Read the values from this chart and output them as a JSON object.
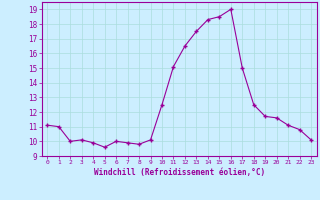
{
  "x": [
    0,
    1,
    2,
    3,
    4,
    5,
    6,
    7,
    8,
    9,
    10,
    11,
    12,
    13,
    14,
    15,
    16,
    17,
    18,
    19,
    20,
    21,
    22,
    23
  ],
  "y": [
    11.1,
    11.0,
    10.0,
    10.1,
    9.9,
    9.6,
    10.0,
    9.9,
    9.8,
    10.1,
    12.5,
    15.1,
    16.5,
    17.5,
    18.3,
    18.5,
    19.0,
    15.0,
    12.5,
    11.7,
    11.6,
    11.1,
    10.8,
    10.1
  ],
  "line_color": "#990099",
  "marker": "+",
  "marker_size": 3,
  "bg_color": "#cceeff",
  "grid_color": "#aadddd",
  "xlabel": "Windchill (Refroidissement éolien,°C)",
  "xlabel_color": "#990099",
  "ylim": [
    9,
    19.5
  ],
  "xlim": [
    -0.5,
    23.5
  ],
  "yticks": [
    9,
    10,
    11,
    12,
    13,
    14,
    15,
    16,
    17,
    18,
    19
  ],
  "xticks": [
    0,
    1,
    2,
    3,
    4,
    5,
    6,
    7,
    8,
    9,
    10,
    11,
    12,
    13,
    14,
    15,
    16,
    17,
    18,
    19,
    20,
    21,
    22,
    23
  ],
  "tick_label_color": "#990099",
  "spine_color": "#990099"
}
